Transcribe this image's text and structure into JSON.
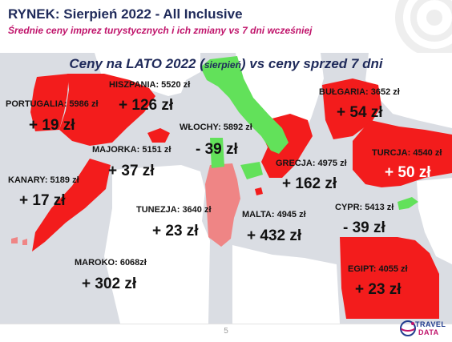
{
  "header": {
    "title": "RYNEK: Sierpień 2022 - All Inclusive",
    "subtitle": "Średnie ceny imprez turystycznych i ich zmiany vs 7 dni wcześniej"
  },
  "map_title": {
    "main": "Ceny na LATO 2022 (",
    "small": "sierpień",
    "rest": ") vs ceny sprzed 7 dni"
  },
  "destinations": [
    {
      "label": "PORTUGALIA: 5986 zł",
      "change": "+ 19 zł"
    },
    {
      "label": "HISZPANIA: 5520 zł",
      "change": "+ 126 zł"
    },
    {
      "label": "WŁOCHY: 5892 zł",
      "change": "- 39 zł"
    },
    {
      "label": "BUŁGARIA: 3652 zł",
      "change": "+ 54 zł"
    },
    {
      "label": "MAJORKA: 5151 zł",
      "change": "+ 37 zł"
    },
    {
      "label": "TURCJA: 4540 zł",
      "change": "+ 50 zł"
    },
    {
      "label": "GRECJA: 4975 zł",
      "change": "+ 162 zł"
    },
    {
      "label": "KANARY: 5189 zł",
      "change": "+ 17 zł"
    },
    {
      "label": "TUNEZJA: 3640 zł",
      "change": "+ 23 zł"
    },
    {
      "label": "MALTA: 4945 zł",
      "change": "+ 432 zł"
    },
    {
      "label": "CYPR: 5413 zł",
      "change": "- 39 zł"
    },
    {
      "label": "MAROKO: 6068zł",
      "change": "+ 302 zł"
    },
    {
      "label": "EGIPT: 4055 zł",
      "change": "+ 23 zł"
    }
  ],
  "colors": {
    "price_up": "#f31c1c",
    "price_down": "#62e15a",
    "price_up_light": "#ef8585",
    "land_other": "#ffffff",
    "sea": "#dadde3",
    "title_navy": "#1f2a5a",
    "subtitle_magenta": "#c0146b"
  },
  "footer": {
    "page_number": "5",
    "logo_top": "TRAVEL",
    "logo_bottom": "DATA"
  }
}
